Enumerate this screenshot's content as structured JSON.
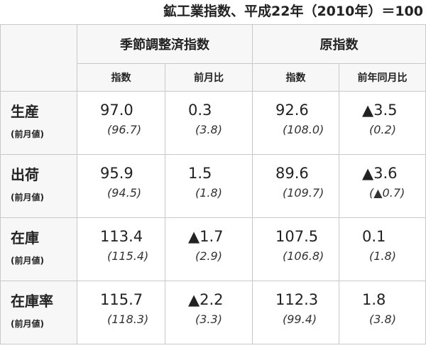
{
  "header": {
    "title": "鉱工業指数、平成22年（2010年）＝100"
  },
  "table": {
    "groups": [
      "季節調整済指数",
      "原指数"
    ],
    "columns": [
      "指数",
      "前月比",
      "指数",
      "前年同月比"
    ],
    "rows": [
      {
        "label": "生産",
        "sublabel": "(前月値)",
        "values": [
          "97.0",
          "0.3",
          "92.6",
          "▲3.5"
        ],
        "previous": [
          "(96.7)",
          "(3.8)",
          "(108.0)",
          "(0.2)"
        ]
      },
      {
        "label": "出荷",
        "sublabel": "(前月値)",
        "values": [
          "95.9",
          "1.5",
          "89.6",
          "▲3.6"
        ],
        "previous": [
          "(94.5)",
          "(1.8)",
          "(109.7)",
          "(▲0.7)"
        ]
      },
      {
        "label": "在庫",
        "sublabel": "(前月値)",
        "values": [
          "113.4",
          "▲1.7",
          "107.5",
          "0.1"
        ],
        "previous": [
          "(115.4)",
          "(2.9)",
          "(106.8)",
          "(1.8)"
        ]
      },
      {
        "label": "在庫率",
        "sublabel": "(前月値)",
        "values": [
          "115.7",
          "▲2.2",
          "112.3",
          "1.8"
        ],
        "previous": [
          "(118.3)",
          "(3.3)",
          "(99.4)",
          "(3.8)"
        ]
      }
    ]
  }
}
